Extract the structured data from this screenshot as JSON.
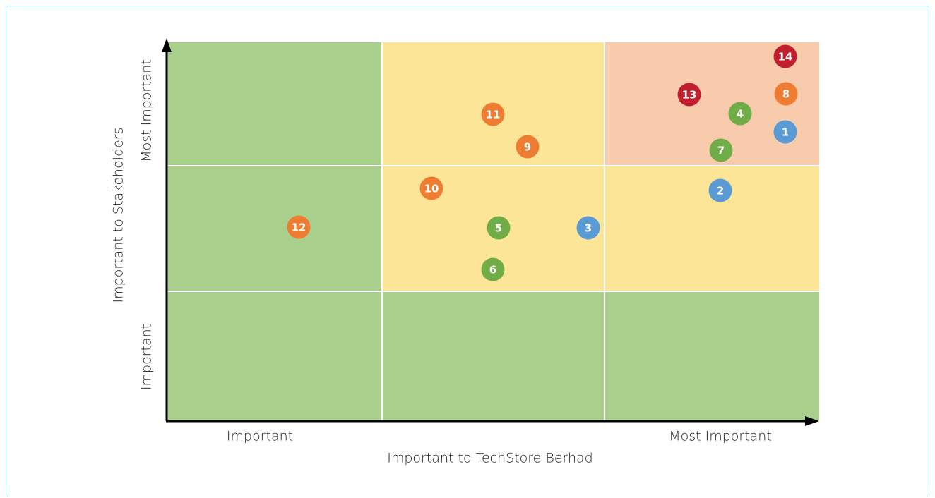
{
  "y_axis": {
    "label": "Important to Stakeholders",
    "low": "Important",
    "high": "Most Important"
  },
  "x_axis": {
    "label": "Important to TechStore Berhad",
    "low": "Important",
    "high": "Most Important"
  },
  "nodes": [
    {
      "label": 14,
      "color": "#c0202e"
    },
    {
      "label": 8,
      "color": "#ee7d31"
    },
    {
      "label": 13,
      "color": "#c0202e"
    },
    {
      "label": 4,
      "color": "#70ad47"
    },
    {
      "label": 1,
      "color": "#5b9bd5"
    },
    {
      "label": 7,
      "color": "#70ad47"
    },
    {
      "label": 2,
      "color": "#5b9bd5"
    },
    {
      "label": 11,
      "color": "#ee7d31"
    },
    {
      "label": 9,
      "color": "#ee7d31"
    },
    {
      "label": 10,
      "color": "#ee7d31"
    },
    {
      "label": 5,
      "color": "#70ad47"
    },
    {
      "label": 3,
      "color": "#5b9bd5"
    },
    {
      "label": 6,
      "color": "#70ad47"
    },
    {
      "label": 12,
      "color": "#ee7d31"
    }
  ]
}
